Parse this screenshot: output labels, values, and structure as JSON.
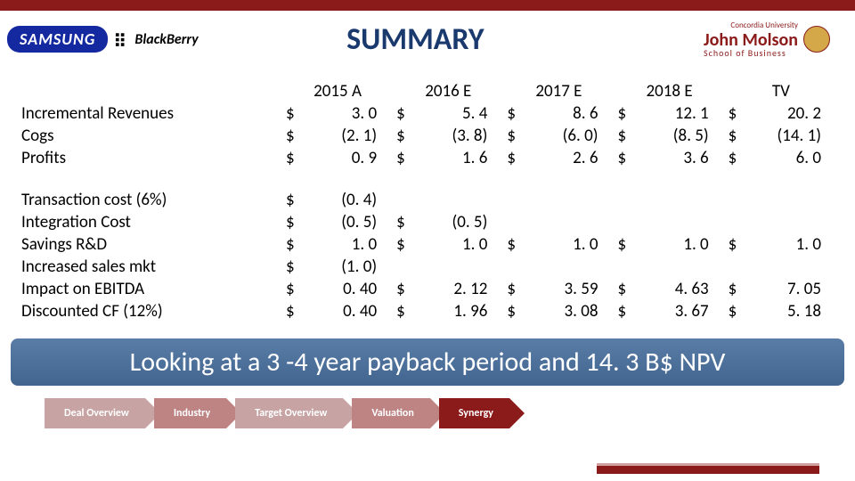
{
  "colors": {
    "brand_bar": "#8b1a1a",
    "title": "#1a3a6e",
    "banner_top": "#5a7da8",
    "banner_bottom": "#41658f",
    "samsung_bg": "#1428a0"
  },
  "logos": {
    "samsung": "SAMSUNG",
    "blackberry": "BlackBerry",
    "jm_line1": "John Molson",
    "jm_line2": "School of Business",
    "concordia": "Concordia University"
  },
  "title": "SUMMARY",
  "table": {
    "headers": [
      "2015 A",
      "2016 E",
      "2017 E",
      "2018 E",
      "TV"
    ],
    "section1": [
      {
        "label": "Incremental Revenues",
        "vals": [
          "3. 0",
          "5. 4",
          "8. 6",
          "12. 1",
          "20. 2"
        ]
      },
      {
        "label": "Cogs",
        "vals": [
          "(2. 1)",
          "(3. 8)",
          "(6. 0)",
          "(8. 5)",
          "(14. 1)"
        ]
      },
      {
        "label": "Profits",
        "vals": [
          "0. 9",
          "1. 6",
          "2. 6",
          "3. 6",
          "6. 0"
        ]
      }
    ],
    "section2": [
      {
        "label": "Transaction cost (6%)",
        "vals": [
          "(0. 4)",
          "",
          "",
          "",
          ""
        ]
      },
      {
        "label": "Integration Cost",
        "vals": [
          "(0. 5)",
          "(0. 5)",
          "",
          "",
          ""
        ]
      },
      {
        "label": "Savings R&D",
        "vals": [
          "1. 0",
          "1. 0",
          "1. 0",
          "1. 0",
          "1. 0"
        ]
      },
      {
        "label": "Increased sales mkt",
        "vals": [
          "(1. 0)",
          "",
          "",
          "",
          ""
        ]
      },
      {
        "label": "Impact on EBITDA",
        "vals": [
          "0. 40",
          "2. 12",
          "3. 59",
          "4. 63",
          "7. 05"
        ]
      },
      {
        "label": "Discounted CF (12%)",
        "vals": [
          "0. 40",
          "1. 96",
          "3. 08",
          "3. 67",
          "5. 18"
        ]
      }
    ]
  },
  "banner": "Looking at a 3 -4 year payback period and 14. 3 B$ NPV",
  "nav": [
    "Deal Overview",
    "Industry",
    "Target Overview",
    "Valuation",
    "Synergy"
  ]
}
